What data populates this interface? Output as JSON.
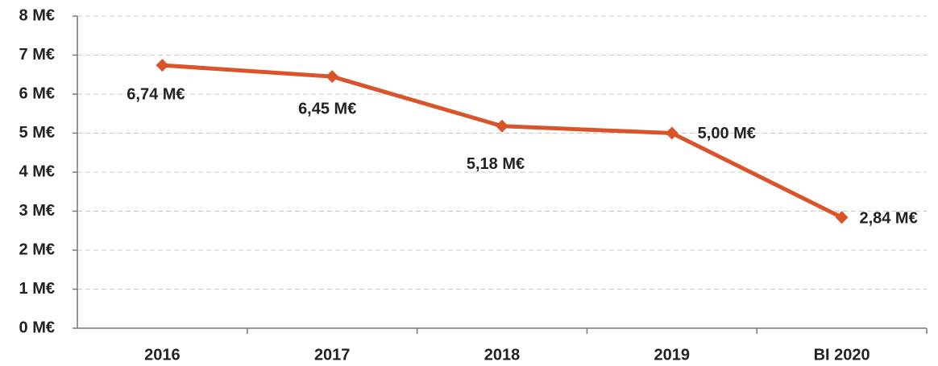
{
  "chart_data": {
    "type": "line",
    "categories": [
      "2016",
      "2017",
      "2018",
      "2019",
      "BI 2020"
    ],
    "series": [
      {
        "name": null,
        "color": "#d9542b",
        "values": [
          6.74,
          6.45,
          5.18,
          5.0,
          2.84
        ],
        "value_labels": [
          "6,74 M€",
          "6,45 M€",
          "5,18 M€",
          "5,00 M€",
          "2,84 M€"
        ]
      }
    ],
    "ylim": [
      0,
      8
    ],
    "yticks": [
      {
        "value": 0,
        "label": "0 M€"
      },
      {
        "value": 1,
        "label": "1 M€"
      },
      {
        "value": 2,
        "label": "2 M€"
      },
      {
        "value": 3,
        "label": "3 M€"
      },
      {
        "value": 4,
        "label": "4 M€"
      },
      {
        "value": 5,
        "label": "5 M€"
      },
      {
        "value": 6,
        "label": "6 M€"
      },
      {
        "value": 7,
        "label": "7 M€"
      },
      {
        "value": 8,
        "label": "8 M€"
      }
    ],
    "grid": true
  }
}
